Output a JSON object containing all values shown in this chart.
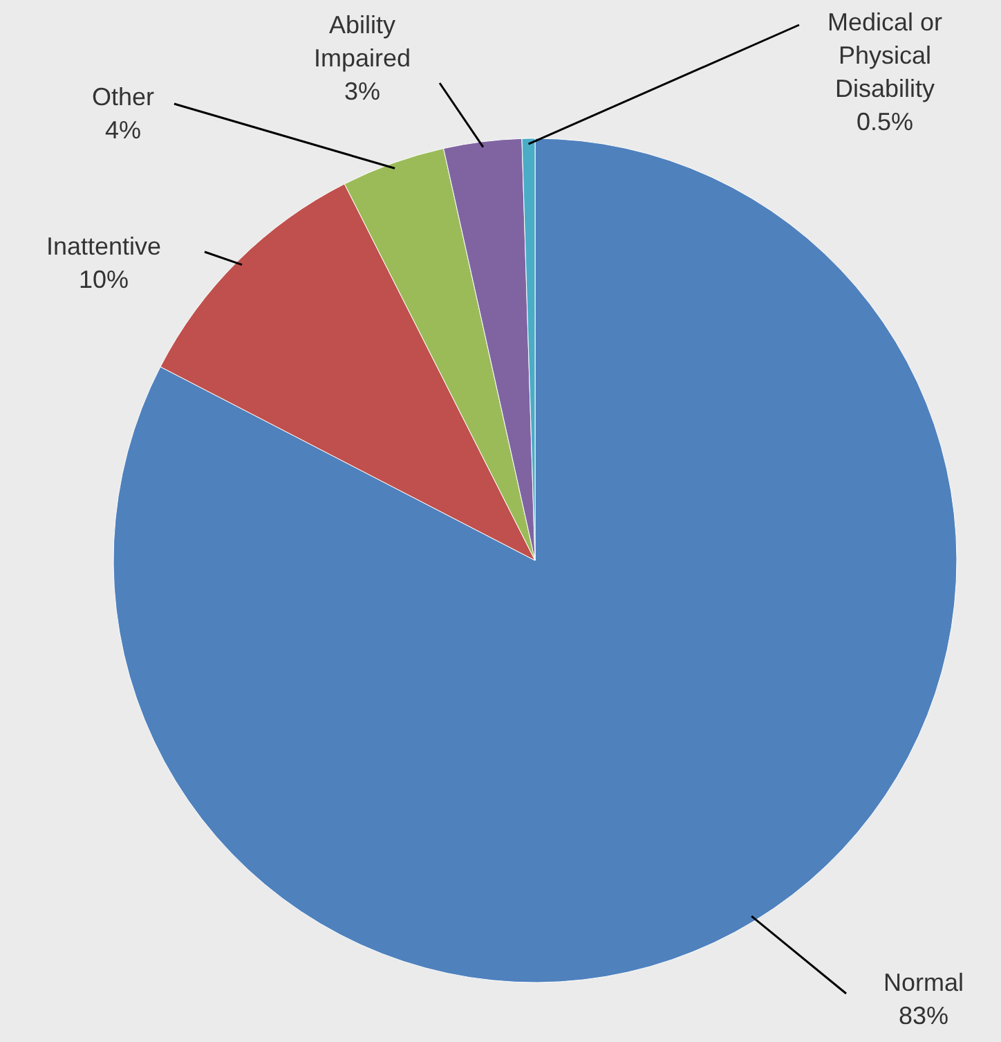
{
  "chart_data": {
    "type": "pie",
    "categories": [
      "Normal",
      "Inattentive",
      "Other",
      "Ability Impaired",
      "Medical or Physical Disability"
    ],
    "values": [
      83,
      10,
      4,
      3,
      0.5
    ],
    "value_labels": [
      "83%",
      "10%",
      "4%",
      "3%",
      "0.5%"
    ],
    "colors": [
      "#4f81bd",
      "#c0504d",
      "#9bbb59",
      "#8064a2",
      "#4bacc6"
    ]
  }
}
